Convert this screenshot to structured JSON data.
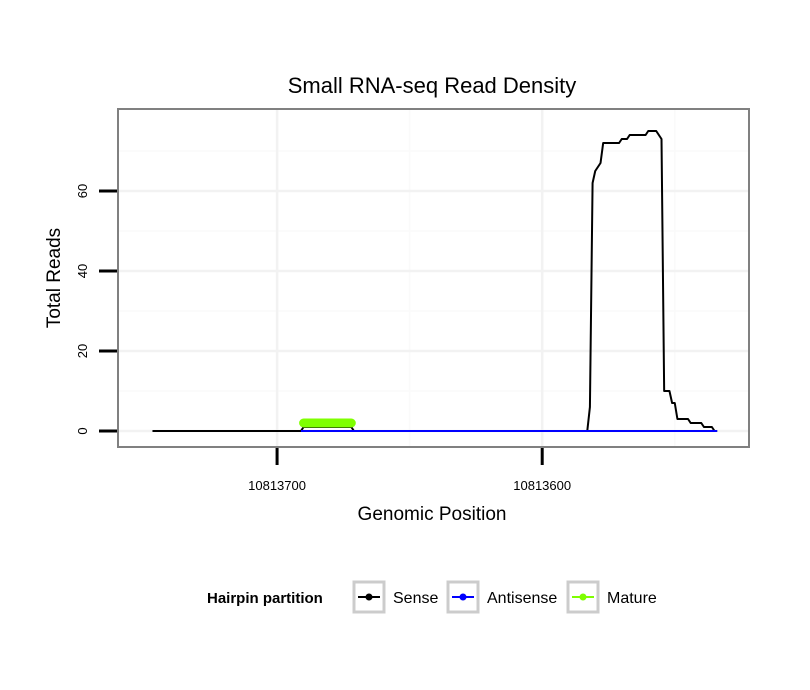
{
  "chart_data": {
    "type": "line",
    "title": "Small RNA-seq Read Density",
    "xlabel": "Genomic Position",
    "ylabel": "Total Reads",
    "x_reversed": true,
    "xlim": [
      10813760,
      10813522
    ],
    "ylim": [
      -4,
      80.5
    ],
    "x_ticks": [
      10813700,
      10813600
    ],
    "x_tick_labels": [
      "10813700",
      "10813600"
    ],
    "x_minor_ticks": [
      10813650,
      10813550
    ],
    "y_ticks": [
      0,
      20,
      40,
      60
    ],
    "y_tick_labels": [
      "0",
      "20",
      "40",
      "60"
    ],
    "y_minor_ticks": [
      10,
      30,
      50,
      70
    ],
    "grid": true,
    "legend": {
      "title": "Hairpin partition",
      "position": "bottom",
      "entries": [
        "Sense",
        "Antisense",
        "Mature"
      ]
    },
    "series": [
      {
        "name": "Sense",
        "color": "#000000",
        "points": [
          [
            10813747,
            0
          ],
          [
            10813691,
            0
          ],
          [
            10813690,
            1
          ],
          [
            10813689,
            1
          ],
          [
            10813672,
            1
          ],
          [
            10813671,
            0
          ],
          [
            10813583,
            0
          ],
          [
            10813582,
            6
          ],
          [
            10813581,
            62
          ],
          [
            10813580,
            65
          ],
          [
            10813578,
            67
          ],
          [
            10813577,
            72
          ],
          [
            10813575,
            72
          ],
          [
            10813571,
            72
          ],
          [
            10813570,
            73
          ],
          [
            10813568,
            73
          ],
          [
            10813567,
            74
          ],
          [
            10813565,
            74
          ],
          [
            10813561,
            74
          ],
          [
            10813560,
            75
          ],
          [
            10813557,
            75
          ],
          [
            10813555,
            73
          ],
          [
            10813554,
            10
          ],
          [
            10813552,
            10
          ],
          [
            10813551,
            7
          ],
          [
            10813550,
            7
          ],
          [
            10813549,
            3
          ],
          [
            10813545,
            3
          ],
          [
            10813544,
            2
          ],
          [
            10813540,
            2
          ],
          [
            10813539,
            1
          ],
          [
            10813536,
            1
          ],
          [
            10813535,
            0
          ],
          [
            10813534,
            0
          ]
        ]
      },
      {
        "name": "Antisense",
        "color": "#0000ff",
        "points": [
          [
            10813691,
            0
          ],
          [
            10813671,
            0
          ],
          [
            10813583,
            0
          ],
          [
            10813534,
            0
          ]
        ]
      },
      {
        "name": "Mature",
        "color": "#7fff00",
        "points": [
          [
            10813690,
            2
          ],
          [
            10813672,
            2
          ]
        ]
      }
    ]
  }
}
